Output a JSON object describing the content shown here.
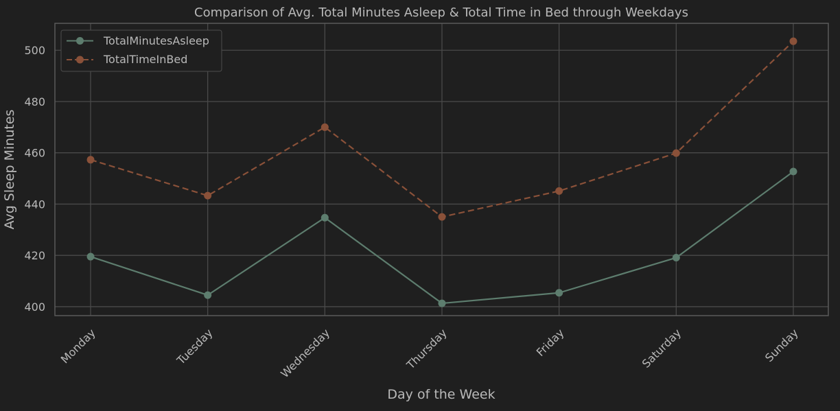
{
  "colors": {
    "background": "#1f1f1f",
    "plot_border": "#5a5a5a",
    "grid": "#4a4a4a",
    "text": "#b9b9b9",
    "asleep": "#5d7d6e",
    "in_bed": "#8a5139"
  },
  "chart_data": {
    "type": "line",
    "title": "Comparison of Avg. Total Minutes Asleep & Total Time in Bed through Weekdays",
    "xlabel": "Day of the Week",
    "ylabel": "Avg Sleep Minutes",
    "categories": [
      "Monday",
      "Tuesday",
      "Wednesday",
      "Thursday",
      "Friday",
      "Saturday",
      "Sunday"
    ],
    "ylim": [
      396.5,
      510.5
    ],
    "yticks": [
      400,
      420,
      440,
      460,
      480,
      500
    ],
    "grid": true,
    "legend_position": "top-left",
    "series": [
      {
        "name": "TotalMinutesAsleep",
        "values": [
          419.5,
          404.5,
          434.7,
          401.3,
          405.4,
          419.1,
          452.7
        ],
        "line_style": "solid",
        "marker": "circle",
        "color_key": "asleep"
      },
      {
        "name": "TotalTimeInBed",
        "values": [
          457.3,
          443.3,
          470.0,
          435.0,
          445.1,
          459.9,
          503.5
        ],
        "line_style": "dashed",
        "marker": "circle",
        "color_key": "in_bed"
      }
    ]
  }
}
